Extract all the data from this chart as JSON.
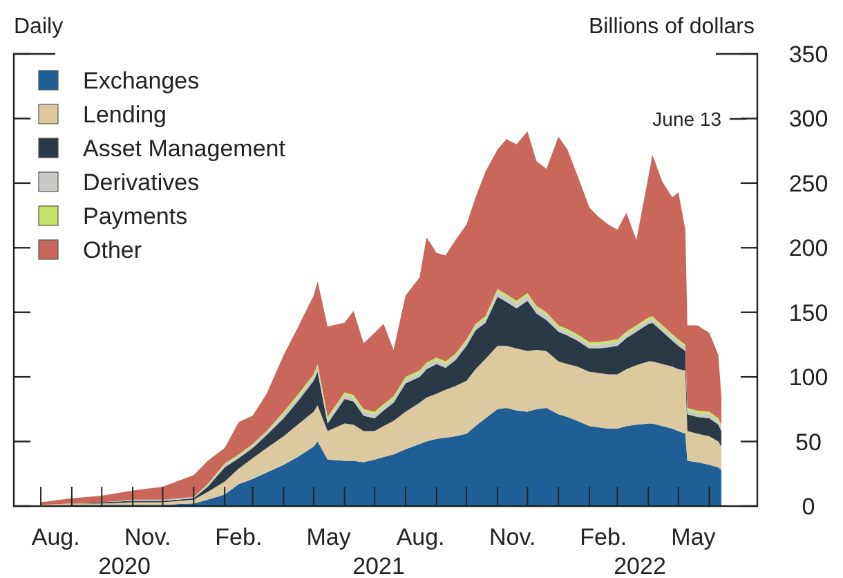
{
  "chart_data": {
    "type": "area",
    "stacked": true,
    "ylabel": "Billions of dollars",
    "annotations": [
      "Daily",
      "June 13",
      "2020",
      "2021",
      "2022"
    ],
    "x": [
      "2020-08-01",
      "2020-09-01",
      "2020-10-01",
      "2020-11-01",
      "2020-12-01",
      "2021-01-01",
      "2021-01-15",
      "2021-02-01",
      "2021-02-15",
      "2021-03-01",
      "2021-03-15",
      "2021-04-01",
      "2021-04-15",
      "2021-05-01",
      "2021-05-05",
      "2021-05-15",
      "2021-06-01",
      "2021-06-10",
      "2021-06-20",
      "2021-07-01",
      "2021-07-10",
      "2021-07-20",
      "2021-08-01",
      "2021-08-15",
      "2021-08-22",
      "2021-09-01",
      "2021-09-10",
      "2021-09-20",
      "2021-10-01",
      "2021-10-10",
      "2021-10-20",
      "2021-11-01",
      "2021-11-10",
      "2021-11-20",
      "2021-12-01",
      "2021-12-10",
      "2021-12-20",
      "2022-01-01",
      "2022-01-10",
      "2022-01-20",
      "2022-02-01",
      "2022-02-10",
      "2022-02-20",
      "2022-03-01",
      "2022-03-10",
      "2022-03-20",
      "2022-04-01",
      "2022-04-05",
      "2022-04-15",
      "2022-04-25",
      "2022-05-01",
      "2022-05-08",
      "2022-05-10",
      "2022-05-20",
      "2022-06-01",
      "2022-06-10",
      "2022-06-13"
    ],
    "series": [
      {
        "name": "Exchanges",
        "color": "#1f5f96",
        "values": [
          0,
          1,
          1,
          1,
          1,
          2,
          5,
          9,
          17,
          21,
          26,
          32,
          38,
          46,
          50,
          36,
          35,
          35,
          34,
          36,
          38,
          40,
          44,
          48,
          50,
          52,
          53,
          54,
          56,
          62,
          68,
          75,
          76,
          74,
          73,
          75,
          76,
          71,
          69,
          66,
          62,
          61,
          60,
          60,
          62,
          63,
          64,
          64,
          62,
          60,
          58,
          56,
          35,
          34,
          32,
          30,
          28
        ]
      },
      {
        "name": "Lending",
        "color": "#dcc9a0",
        "values": [
          1,
          1,
          1,
          2,
          2,
          3,
          6,
          10,
          12,
          16,
          19,
          22,
          25,
          27,
          28,
          22,
          29,
          28,
          24,
          22,
          24,
          26,
          29,
          32,
          34,
          35,
          37,
          39,
          41,
          44,
          46,
          49,
          48,
          48,
          47,
          46,
          44,
          41,
          41,
          42,
          42,
          42,
          42,
          42,
          44,
          46,
          48,
          48,
          48,
          48,
          48,
          49,
          23,
          22,
          22,
          20,
          18
        ]
      },
      {
        "name": "Asset Management",
        "color": "#2a3945",
        "values": [
          0,
          0,
          1,
          1,
          1,
          1,
          4,
          11,
          8,
          8,
          10,
          14,
          18,
          24,
          26,
          6,
          19,
          18,
          12,
          10,
          12,
          14,
          22,
          20,
          22,
          23,
          17,
          20,
          27,
          30,
          28,
          38,
          34,
          31,
          39,
          28,
          24,
          23,
          22,
          20,
          18,
          19,
          21,
          22,
          24,
          26,
          29,
          30,
          25,
          20,
          18,
          15,
          13,
          13,
          14,
          13,
          12
        ]
      },
      {
        "name": "Derivatives",
        "color": "#c8cac6",
        "values": [
          0,
          0,
          0,
          1,
          1,
          1,
          1,
          2,
          2,
          2,
          2,
          3,
          3,
          3,
          4,
          3,
          3,
          3,
          3,
          3,
          3,
          3,
          3,
          3,
          3,
          3,
          3,
          3,
          3,
          3,
          3,
          4,
          4,
          4,
          4,
          4,
          4,
          3,
          3,
          3,
          3,
          3,
          3,
          3,
          3,
          3,
          3,
          3,
          3,
          3,
          3,
          3,
          3,
          3,
          3,
          3,
          3
        ]
      },
      {
        "name": "Payments",
        "color": "#c6e36a",
        "values": [
          0,
          0,
          0,
          0,
          0,
          0,
          1,
          1,
          1,
          1,
          1,
          2,
          2,
          2,
          2,
          2,
          2,
          2,
          2,
          2,
          2,
          2,
          2,
          2,
          2,
          2,
          2,
          2,
          2,
          2,
          2,
          2,
          2,
          2,
          2,
          2,
          2,
          2,
          2,
          2,
          2,
          2,
          2,
          2,
          2,
          2,
          2,
          2,
          2,
          2,
          2,
          2,
          2,
          2,
          2,
          2,
          2
        ]
      },
      {
        "name": "Other",
        "color": "#c8675a",
        "values": [
          2,
          4,
          5,
          7,
          10,
          17,
          18,
          12,
          25,
          22,
          29,
          44,
          52,
          61,
          64,
          70,
          54,
          65,
          51,
          61,
          62,
          36,
          63,
          72,
          97,
          81,
          82,
          88,
          89,
          98,
          112,
          108,
          120,
          121,
          125,
          112,
          111,
          146,
          139,
          123,
          104,
          97,
          90,
          85,
          92,
          66,
          109,
          125,
          111,
          106,
          114,
          89,
          64,
          66,
          61,
          49,
          22
        ]
      }
    ],
    "xlim": [
      "2020-07-05",
      "2022-07-19"
    ],
    "xticks": [
      {
        "value": "2020-08-01",
        "label": null
      },
      {
        "value": "2020-09-01",
        "label": null
      },
      {
        "value": "2020-10-01",
        "label": null
      },
      {
        "value": "2020-11-01",
        "label": null
      },
      {
        "value": "2020-12-01",
        "label": null
      },
      {
        "value": "2021-01-01",
        "label": null
      },
      {
        "value": "2021-02-01",
        "label": null
      },
      {
        "value": "2021-03-01",
        "label": null
      },
      {
        "value": "2021-04-01",
        "label": null
      },
      {
        "value": "2021-05-01",
        "label": null
      },
      {
        "value": "2021-06-01",
        "label": null
      },
      {
        "value": "2021-07-01",
        "label": null
      },
      {
        "value": "2021-08-01",
        "label": null
      },
      {
        "value": "2021-09-01",
        "label": null
      },
      {
        "value": "2021-10-01",
        "label": null
      },
      {
        "value": "2021-11-01",
        "label": null
      },
      {
        "value": "2021-12-01",
        "label": null
      },
      {
        "value": "2022-01-01",
        "label": null
      },
      {
        "value": "2022-02-01",
        "label": null
      },
      {
        "value": "2022-03-01",
        "label": null
      },
      {
        "value": "2022-04-01",
        "label": null
      },
      {
        "value": "2022-05-01",
        "label": null
      },
      {
        "value": "2022-06-01",
        "label": null
      },
      {
        "value": "2020-08-16",
        "label": "Aug."
      },
      {
        "value": "2020-11-16",
        "label": "Nov."
      },
      {
        "value": "2021-02-15",
        "label": "Feb."
      },
      {
        "value": "2021-05-16",
        "label": "May"
      },
      {
        "value": "2021-08-16",
        "label": "Aug."
      },
      {
        "value": "2021-11-16",
        "label": "Nov."
      },
      {
        "value": "2022-02-15",
        "label": "Feb."
      },
      {
        "value": "2022-05-16",
        "label": "May"
      }
    ],
    "ylim": [
      0,
      350
    ],
    "yticks": [
      0,
      50,
      100,
      150,
      200,
      250,
      300,
      350
    ],
    "legend": "top left",
    "grid": false
  }
}
